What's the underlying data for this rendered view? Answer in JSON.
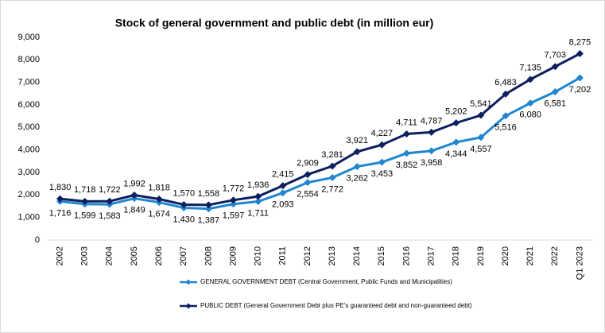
{
  "chart_data": {
    "type": "line",
    "title": "Stock of general government and public debt (in million eur)",
    "categories": [
      "2002",
      "2003",
      "2004",
      "2005",
      "2006",
      "2007",
      "2008",
      "2009",
      "2010",
      "2011",
      "2012",
      "2013",
      "2014",
      "2015",
      "2016",
      "2017",
      "2018",
      "2019",
      "2020",
      "2021",
      "2022",
      "Q1 2023"
    ],
    "series": [
      {
        "name": "GENERAL GOVERNMENT DEBT (Central Government, Public Funds and Municipalities)",
        "color": "#1f86cf",
        "label_position": "below",
        "values": [
          1716,
          1599,
          1583,
          1849,
          1674,
          1430,
          1387,
          1597,
          1711,
          2093,
          2554,
          2772,
          3262,
          3453,
          3852,
          3958,
          4344,
          4557,
          5516,
          6080,
          6581,
          7202
        ],
        "value_labels": [
          "1,716",
          "1,599",
          "1,583",
          "1,849",
          "1,674",
          "1,430",
          "1,387",
          "1,597",
          "1,711",
          "2,093",
          "2,554",
          "2,772",
          "3,262",
          "3,453",
          "3,852",
          "3,958",
          "4,344",
          "4,557",
          "5,516",
          "6,080",
          "6,581",
          "7,202"
        ]
      },
      {
        "name": "PUBLIC DEBT (General Government Debt plus PE's guaranteed debt and non-guaranteed debt)",
        "color": "#0c1f5e",
        "label_position": "above",
        "values": [
          1830,
          1718,
          1722,
          1992,
          1818,
          1570,
          1558,
          1772,
          1936,
          2415,
          2909,
          3281,
          3921,
          4227,
          4711,
          4787,
          5202,
          5541,
          6483,
          7135,
          7703,
          8275
        ],
        "value_labels": [
          "1,830",
          "1,718",
          "1,722",
          "1,992",
          "1,818",
          "1,570",
          "1,558",
          "1,772",
          "1,936",
          "2,415",
          "2,909",
          "3,281",
          "3,921",
          "4,227",
          "4,711",
          "4,787",
          "5,202",
          "5,541",
          "6,483",
          "7,135",
          "7,703",
          "8,275"
        ]
      }
    ],
    "ylim": [
      0,
      9000
    ],
    "yticks": [
      0,
      {
        "value": 1000,
        "label": "1,000"
      },
      {
        "value": 2000,
        "label": "2,000"
      },
      {
        "value": 3000,
        "label": "3,000"
      },
      {
        "value": 4000,
        "label": "4,000"
      },
      {
        "value": 5000,
        "label": "5,000"
      },
      {
        "value": 6000,
        "label": "6,000"
      },
      {
        "value": 7000,
        "label": "7,000"
      },
      {
        "value": 8000,
        "label": "8,000"
      },
      {
        "value": 9000,
        "label": "9,000"
      }
    ],
    "grid": false,
    "legend": "bottom"
  }
}
